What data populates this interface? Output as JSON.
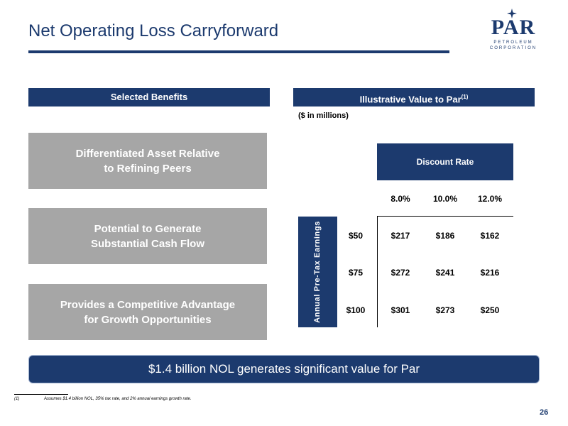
{
  "slide": {
    "title": "Net Operating Loss Carryforward",
    "page_number": "26"
  },
  "logo": {
    "word": "PAR",
    "line1": "PETROLEUM",
    "line2": "CORPORATION"
  },
  "left": {
    "header": "Selected Benefits",
    "benefits": [
      {
        "line1": "Differentiated Asset Relative",
        "line2": "to Refining Peers"
      },
      {
        "line1": "Potential to Generate",
        "line2": "Substantial Cash Flow"
      },
      {
        "line1": "Provides a Competitive Advantage",
        "line2": "for Growth Opportunities"
      }
    ]
  },
  "right": {
    "header": "Illustrative Value to Par",
    "header_note": "(1)",
    "units": "($ in millions)",
    "table": {
      "column_group": "Discount Rate",
      "row_group": "Annual Pre-Tax Earnings",
      "columns": [
        "8.0%",
        "10.0%",
        "12.0%"
      ],
      "rows": [
        {
          "label": "$50",
          "values": [
            "$217",
            "$186",
            "$162"
          ]
        },
        {
          "label": "$75",
          "values": [
            "$272",
            "$241",
            "$216"
          ]
        },
        {
          "label": "$100",
          "values": [
            "$301",
            "$273",
            "$250"
          ]
        }
      ]
    }
  },
  "callout": "$1.4 billion NOL generates significant value for Par",
  "footnote": {
    "number": "(1)",
    "text": "Assumes $1.4 billion NOL, 35% tax rate, and 2% annual earnings growth rate."
  },
  "colors": {
    "navy": "#1c3a6e",
    "gray_box": "#a6a6a6"
  }
}
